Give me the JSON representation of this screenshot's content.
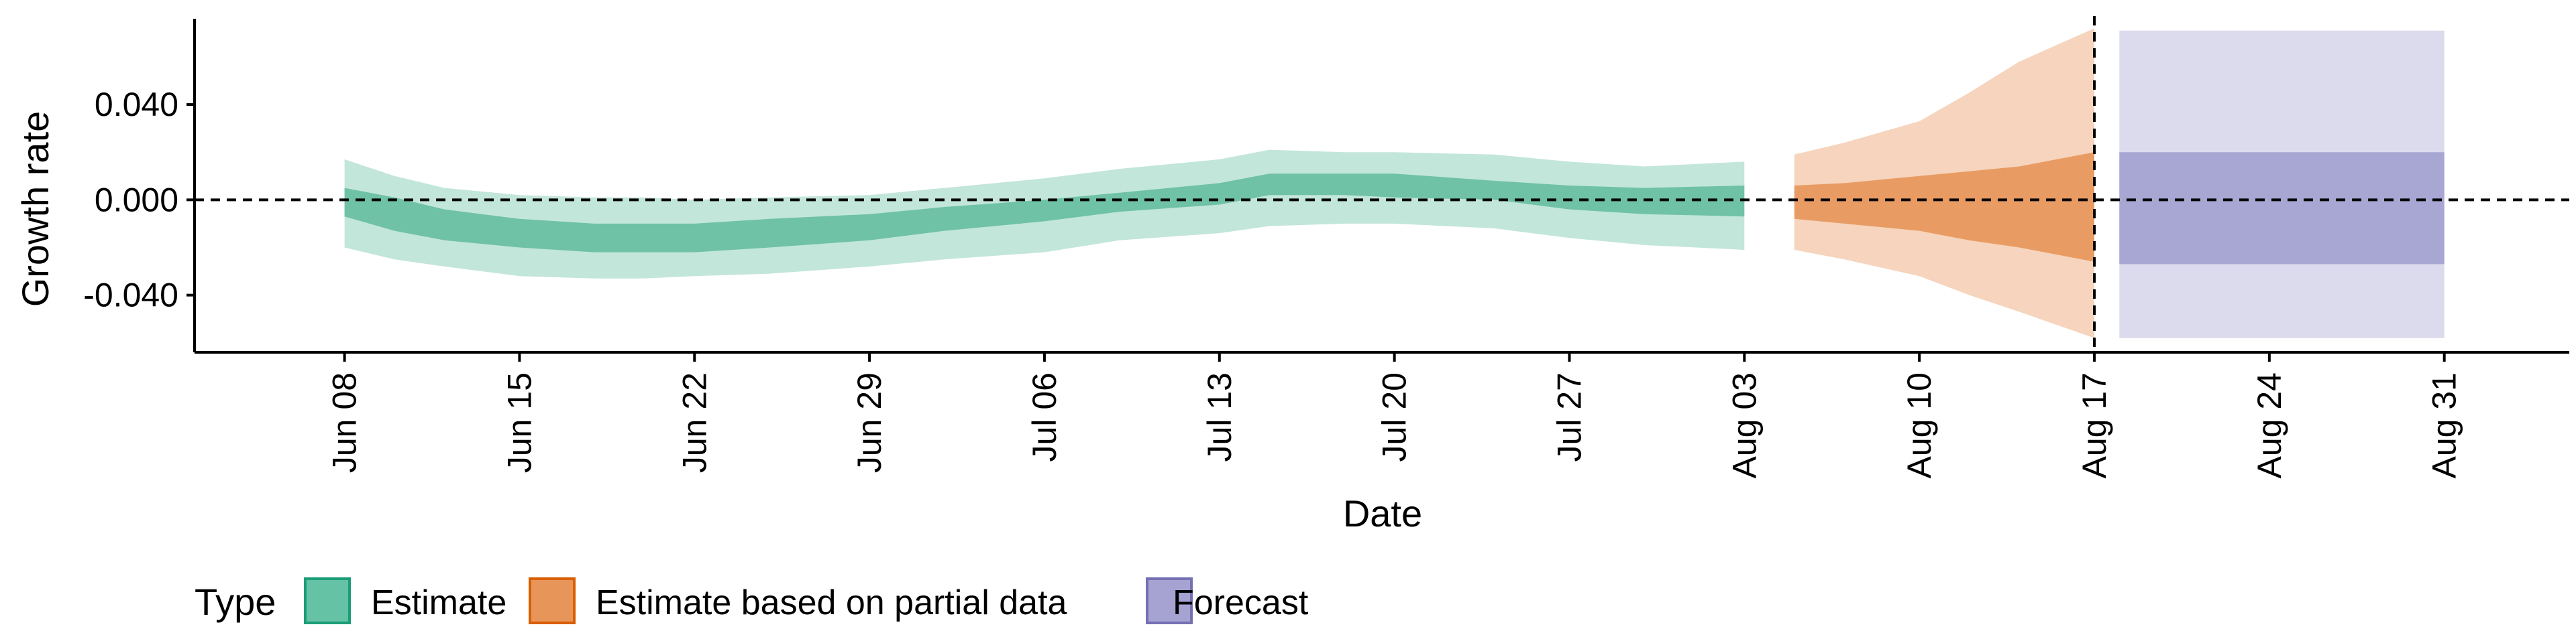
{
  "chart_data": {
    "type": "area",
    "ylabel": "Growth rate",
    "xlabel": "Date",
    "ylim": [
      -0.064,
      0.076
    ],
    "xlim": [
      "2020-06-02",
      "2020-09-05"
    ],
    "y_ticks": [
      -0.04,
      0.0,
      0.04
    ],
    "y_tick_labels": [
      "-0.040",
      "0.000",
      "0.040"
    ],
    "x_ticks": [
      "2020-06-08",
      "2020-06-15",
      "2020-06-22",
      "2020-06-29",
      "2020-07-06",
      "2020-07-13",
      "2020-07-20",
      "2020-07-27",
      "2020-08-03",
      "2020-08-10",
      "2020-08-17",
      "2020-08-24",
      "2020-08-31"
    ],
    "x_tick_labels": [
      "Jun 08",
      "Jun 15",
      "Jun 22",
      "Jun 29",
      "Jul 06",
      "Jul 13",
      "Jul 20",
      "Jul 27",
      "Aug 03",
      "Aug 10",
      "Aug 17",
      "Aug 24",
      "Aug 31"
    ],
    "reference_lines": {
      "horizontal_y": 0.0,
      "vertical_x": "2020-08-17"
    },
    "grid": false,
    "legend": {
      "title": "Type",
      "placement": "bottom-left",
      "entries": [
        {
          "label": "Estimate",
          "color": "#66c2a5",
          "border": "#1b9e77"
        },
        {
          "label": "Estimate based on partial data",
          "color": "#e8955a",
          "border": "#d95f02"
        },
        {
          "label": "Forecast",
          "color": "#a6a3d2",
          "border": "#7570b3"
        }
      ]
    },
    "series": [
      {
        "name": "Estimate",
        "color_inner": "#6fc2a5",
        "color_outer": "#c3e6da",
        "x": [
          "2020-06-08",
          "2020-06-10",
          "2020-06-12",
          "2020-06-15",
          "2020-06-18",
          "2020-06-20",
          "2020-06-22",
          "2020-06-25",
          "2020-06-29",
          "2020-07-02",
          "2020-07-06",
          "2020-07-09",
          "2020-07-13",
          "2020-07-15",
          "2020-07-18",
          "2020-07-20",
          "2020-07-24",
          "2020-07-27",
          "2020-07-30",
          "2020-08-03"
        ],
        "outer_lower": [
          -0.02,
          -0.025,
          -0.028,
          -0.032,
          -0.033,
          -0.033,
          -0.032,
          -0.031,
          -0.028,
          -0.025,
          -0.022,
          -0.017,
          -0.014,
          -0.011,
          -0.01,
          -0.01,
          -0.012,
          -0.016,
          -0.019,
          -0.021
        ],
        "inner_lower": [
          -0.007,
          -0.013,
          -0.017,
          -0.02,
          -0.022,
          -0.022,
          -0.022,
          -0.02,
          -0.017,
          -0.013,
          -0.009,
          -0.005,
          -0.002,
          0.002,
          0.002,
          0.001,
          0.0,
          -0.004,
          -0.006,
          -0.007
        ],
        "inner_upper": [
          0.005,
          0.001,
          -0.004,
          -0.008,
          -0.01,
          -0.01,
          -0.01,
          -0.008,
          -0.006,
          -0.003,
          0.0,
          0.003,
          0.007,
          0.011,
          0.011,
          0.011,
          0.008,
          0.006,
          0.005,
          0.006
        ],
        "outer_upper": [
          0.017,
          0.01,
          0.005,
          0.002,
          0.001,
          0.001,
          0.0,
          0.001,
          0.002,
          0.005,
          0.009,
          0.013,
          0.017,
          0.021,
          0.02,
          0.02,
          0.019,
          0.016,
          0.014,
          0.016
        ]
      },
      {
        "name": "Estimate based on partial data",
        "color_inner": "#e89c63",
        "color_outer": "#f6d4bd",
        "x": [
          "2020-08-05",
          "2020-08-07",
          "2020-08-10",
          "2020-08-12",
          "2020-08-14",
          "2020-08-17"
        ],
        "outer_lower": [
          -0.021,
          -0.025,
          -0.032,
          -0.04,
          -0.047,
          -0.058
        ],
        "inner_lower": [
          -0.008,
          -0.01,
          -0.013,
          -0.017,
          -0.02,
          -0.026
        ],
        "inner_upper": [
          0.006,
          0.007,
          0.01,
          0.012,
          0.014,
          0.02
        ],
        "outer_upper": [
          0.019,
          0.024,
          0.033,
          0.045,
          0.058,
          0.072
        ]
      },
      {
        "name": "Forecast",
        "color_inner": "#a8a6d2",
        "color_outer": "#dcdbed",
        "x": [
          "2020-08-18",
          "2020-08-31"
        ],
        "outer_lower": [
          -0.058,
          -0.058
        ],
        "inner_lower": [
          -0.027,
          -0.027
        ],
        "inner_upper": [
          0.02,
          0.02
        ],
        "outer_upper": [
          0.071,
          0.071
        ]
      }
    ]
  }
}
